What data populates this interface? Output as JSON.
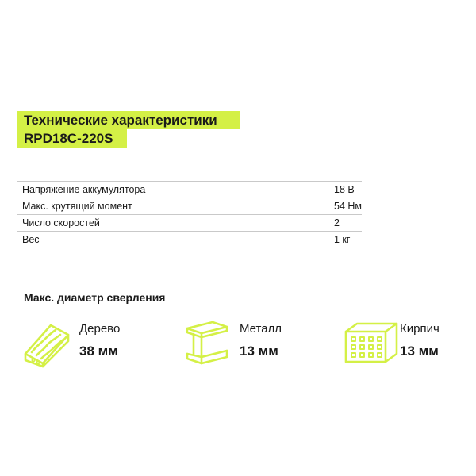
{
  "title": {
    "line1": "Технические характеристики",
    "line2": "RPD18C-220S"
  },
  "specs": [
    {
      "label": "Напряжение аккумулятора",
      "value": "18 В"
    },
    {
      "label": "Макс. крутящий момент",
      "value": "54 Нм"
    },
    {
      "label": "Число скоростей",
      "value": "2"
    },
    {
      "label": "Вес",
      "value": "1 кг"
    }
  ],
  "drill": {
    "heading": "Макс. диаметр сверления",
    "materials": [
      {
        "name": "Дерево",
        "value": "38 мм",
        "icon": "wood-plank-icon"
      },
      {
        "name": "Металл",
        "value": "13 мм",
        "icon": "steel-beam-icon"
      },
      {
        "name": "Кирпич",
        "value": "13 мм",
        "icon": "brick-icon"
      }
    ]
  },
  "colors": {
    "accent": "#d4f046",
    "text": "#1a1a1a",
    "divider": "#c9c9c9"
  }
}
